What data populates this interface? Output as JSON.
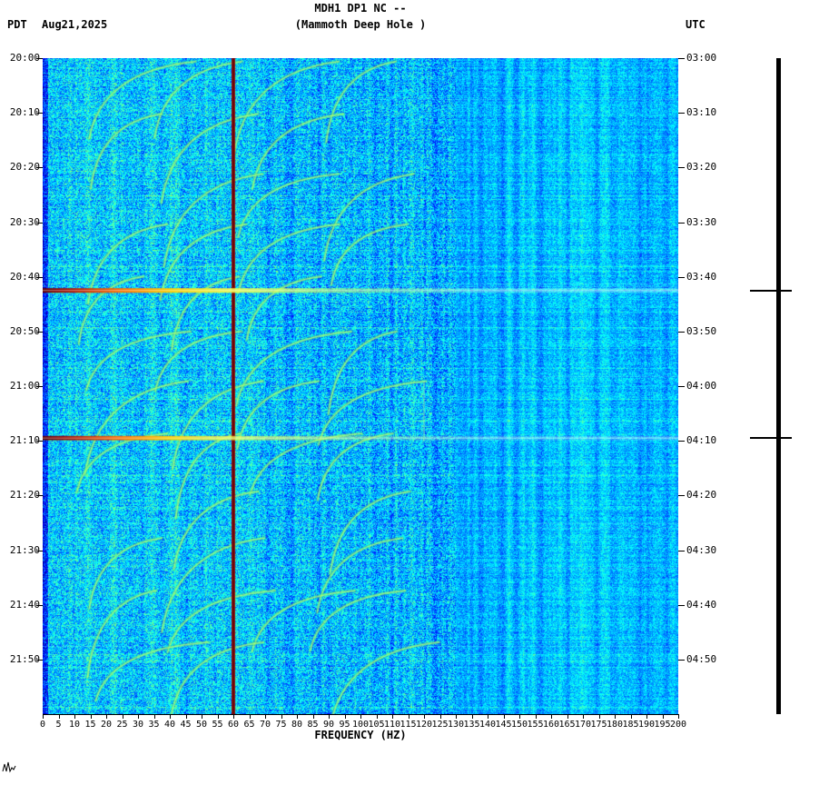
{
  "header": {
    "left_tz": "PDT",
    "date": "Aug21,2025",
    "title": "MDH1 DP1 NC --",
    "subtitle": "(Mammoth Deep Hole )",
    "right_tz": "UTC"
  },
  "chart_data": {
    "type": "heatmap",
    "title": "MDH1 DP1 NC --",
    "subtitle": "(Mammoth Deep Hole )",
    "xlabel": "FREQUENCY (HZ)",
    "x_range_hz": [
      0,
      200
    ],
    "x_tick_step_hz": 5,
    "x_tick_labels": [
      "0",
      "5",
      "10",
      "15",
      "20",
      "25",
      "30",
      "35",
      "40",
      "45",
      "50",
      "55",
      "60",
      "65",
      "70",
      "75",
      "80",
      "85",
      "90",
      "95",
      "100",
      "105",
      "110",
      "115",
      "120",
      "125",
      "130",
      "135",
      "140",
      "145",
      "150",
      "155",
      "160",
      "165",
      "170",
      "175",
      "180",
      "185",
      "190",
      "195",
      "200"
    ],
    "duration_minutes": 120,
    "left_time_labels": [
      "20:00",
      "20:10",
      "20:20",
      "20:30",
      "20:40",
      "20:50",
      "21:00",
      "21:10",
      "21:20",
      "21:30",
      "21:40",
      "21:50"
    ],
    "right_time_labels": [
      "03:00",
      "03:10",
      "03:20",
      "03:30",
      "03:40",
      "03:50",
      "04:00",
      "04:10",
      "04:20",
      "04:30",
      "04:40",
      "04:50"
    ],
    "colormap": "jet",
    "features": {
      "mains_interference": {
        "hz": 60,
        "color": "#8b0000"
      },
      "harmonic_segment": {
        "hz": 120,
        "start_minute": 59,
        "end_minute": 70
      },
      "events": [
        {
          "minute": 42.5,
          "pdt": "20:42",
          "utc": "03:42",
          "strength": 1.0,
          "description": "broadband signal across all frequencies"
        },
        {
          "minute": 69.5,
          "pdt": "21:09",
          "utc": "04:09",
          "strength": 0.85,
          "description": "broadband signal across all frequencies"
        }
      ],
      "arc_families": {
        "count": 12,
        "first_start_minute": 1.0,
        "period_minutes": 9.7,
        "duration_minutes": 14,
        "base_freqs_hz": [
          14,
          39,
          63,
          87
        ],
        "rise_hz": 27
      }
    },
    "palette": {
      "background_blue": "#00a6e8",
      "speckle_green": "#4dff99",
      "arc_yellow_green": "#b4ff50",
      "event_dark_red": "#8b0000",
      "event_yellow": "#ffff46",
      "mains_line_red": "#960c08",
      "axis_black": "#000000"
    }
  }
}
